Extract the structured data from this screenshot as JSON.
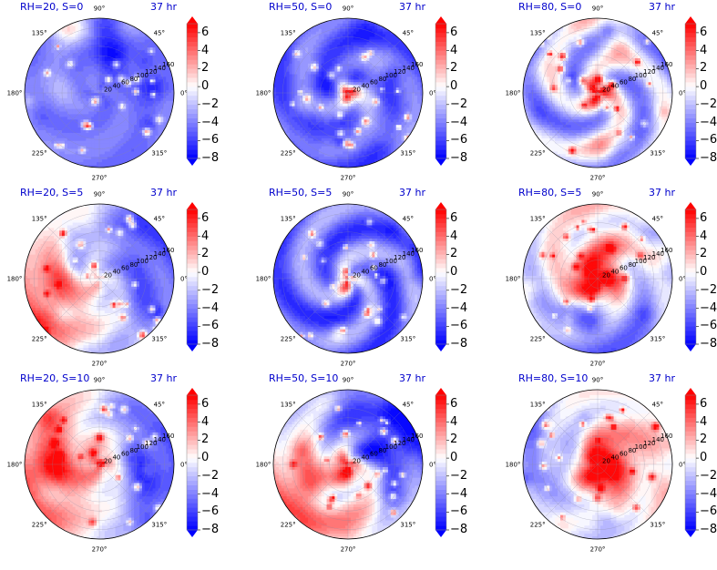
{
  "figure": {
    "time_label": "37 hr",
    "colorbar": {
      "ticks": [
        6,
        4,
        2,
        0,
        -2,
        -4,
        -6,
        -8
      ],
      "tick_labels": [
        "6",
        "4",
        "2",
        "0",
        "−2",
        "−4",
        "−6",
        "−8"
      ],
      "min": -8,
      "max": 7,
      "levels": [
        -8,
        -7.5,
        -7,
        -6.5,
        -6,
        -5.5,
        -5,
        -4.5,
        -4,
        -3.5,
        -3,
        -2.5,
        -2,
        -1.5,
        -1,
        -0.5,
        0,
        0.5,
        1,
        1.5,
        2,
        2.5,
        3,
        3.5,
        4,
        4.5,
        5,
        5.5,
        6,
        6.5,
        7
      ],
      "extend": "both",
      "colormap": "bwr",
      "low_color": "#0000ff",
      "mid_color": "#ffffff",
      "high_color": "#ff0000"
    },
    "polar_axes": {
      "angle_labels": [
        "90°",
        "45°",
        "0°",
        "315°",
        "270°",
        "225°",
        "180°",
        "135°"
      ],
      "radial_labels": [
        "20",
        "40",
        "60",
        "80",
        "100",
        "120",
        "140",
        "160"
      ],
      "radial_max": 160
    }
  },
  "chart_data": [
    {
      "type": "heatmap",
      "projection": "polar",
      "title": "RH=20, S=0",
      "time": "37 hr",
      "rh": 20,
      "s": 0,
      "pattern": "mostly negative (blue) with scattered small positive cells"
    },
    {
      "type": "heatmap",
      "projection": "polar",
      "title": "RH=50, S=0",
      "time": "37 hr",
      "rh": 50,
      "s": 0,
      "pattern": "small positive core at center, negative elsewhere"
    },
    {
      "type": "heatmap",
      "projection": "polar",
      "title": "RH=80, S=0",
      "time": "37 hr",
      "rh": 80,
      "s": 0,
      "pattern": "positive core with spiral bands, mixed outer"
    },
    {
      "type": "heatmap",
      "projection": "polar",
      "title": "RH=20, S=5",
      "time": "37 hr",
      "rh": 20,
      "s": 5,
      "pattern": "positive west-southwest, negative north-east"
    },
    {
      "type": "heatmap",
      "projection": "polar",
      "title": "RH=50, S=5",
      "time": "37 hr",
      "rh": 50,
      "s": 5,
      "pattern": "small positive core south of center, negative elsewhere"
    },
    {
      "type": "heatmap",
      "projection": "polar",
      "title": "RH=80, S=5",
      "time": "37 hr",
      "rh": 80,
      "s": 5,
      "pattern": "large positive core, negative north"
    },
    {
      "type": "heatmap",
      "projection": "polar",
      "title": "RH=20, S=10",
      "time": "37 hr",
      "rh": 20,
      "s": 10,
      "pattern": "broad positive west, strong negative east"
    },
    {
      "type": "heatmap",
      "projection": "polar",
      "title": "RH=50, S=10",
      "time": "37 hr",
      "rh": 50,
      "s": 10,
      "pattern": "positive south-west, strong negative north-east"
    },
    {
      "type": "heatmap",
      "projection": "polar",
      "title": "RH=80, S=10",
      "time": "37 hr",
      "rh": 80,
      "s": 10,
      "pattern": "large positive core, mixed outer ring"
    }
  ]
}
